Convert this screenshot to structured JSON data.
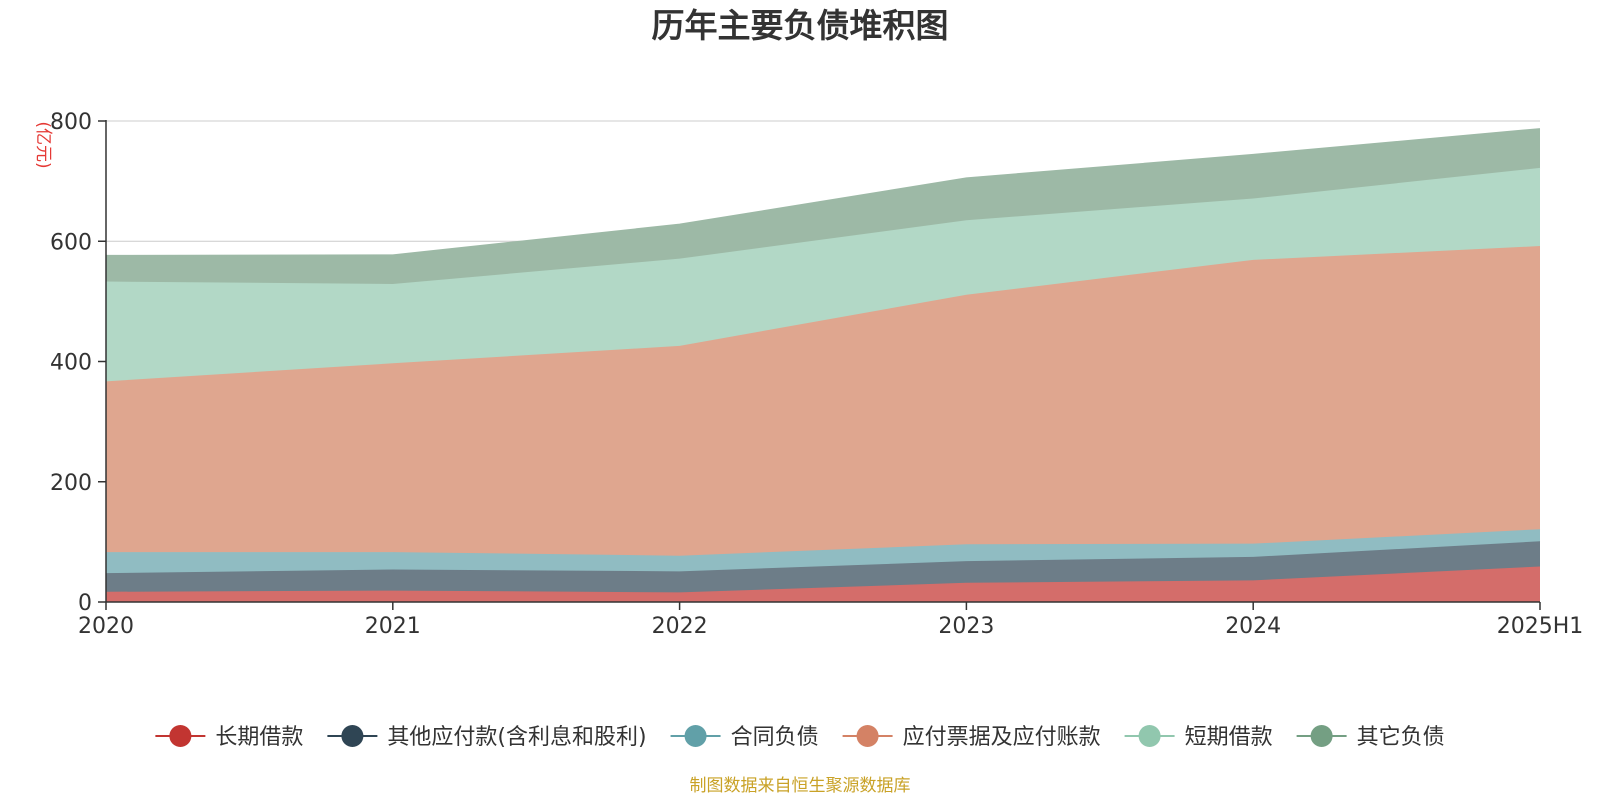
{
  "chart_data": {
    "type": "area",
    "stacked": true,
    "title": "历年主要负债堆积图",
    "unit_label": "(亿元)",
    "categories": [
      "2020",
      "2021",
      "2022",
      "2023",
      "2024",
      "2025H1"
    ],
    "ylim": [
      0,
      800
    ],
    "yticks": [
      0,
      200,
      400,
      600,
      800
    ],
    "grid": true,
    "legend_position": "bottom",
    "source": "制图数据来自恒生聚源数据库",
    "series": [
      {
        "name": "长期借款",
        "values": [
          17,
          19,
          16,
          32,
          36,
          59
        ],
        "color": "#c23531",
        "area_color": "#d46d6a"
      },
      {
        "name": "其他应付款(含利息和股利)",
        "values": [
          31,
          35,
          35,
          36,
          39,
          42
        ],
        "color": "#2f4554",
        "area_color": "#6d7d88"
      },
      {
        "name": "合同负债",
        "values": [
          35,
          29,
          26,
          28,
          22,
          20
        ],
        "color": "#61a0a8",
        "area_color": "#90bcc2"
      },
      {
        "name": "应付票据及应付账款",
        "values": [
          284,
          314,
          349,
          415,
          472,
          471
        ],
        "color": "#d48265",
        "area_color": "#dfa68f"
      },
      {
        "name": "短期借款",
        "values": [
          166,
          132,
          145,
          124,
          102,
          130
        ],
        "color": "#91c7ae",
        "area_color": "#b2d8c6"
      },
      {
        "name": "其它负债",
        "values": [
          43,
          48,
          57,
          70,
          73,
          65
        ],
        "color": "#749f83",
        "area_color": "#9db9a6"
      }
    ]
  }
}
